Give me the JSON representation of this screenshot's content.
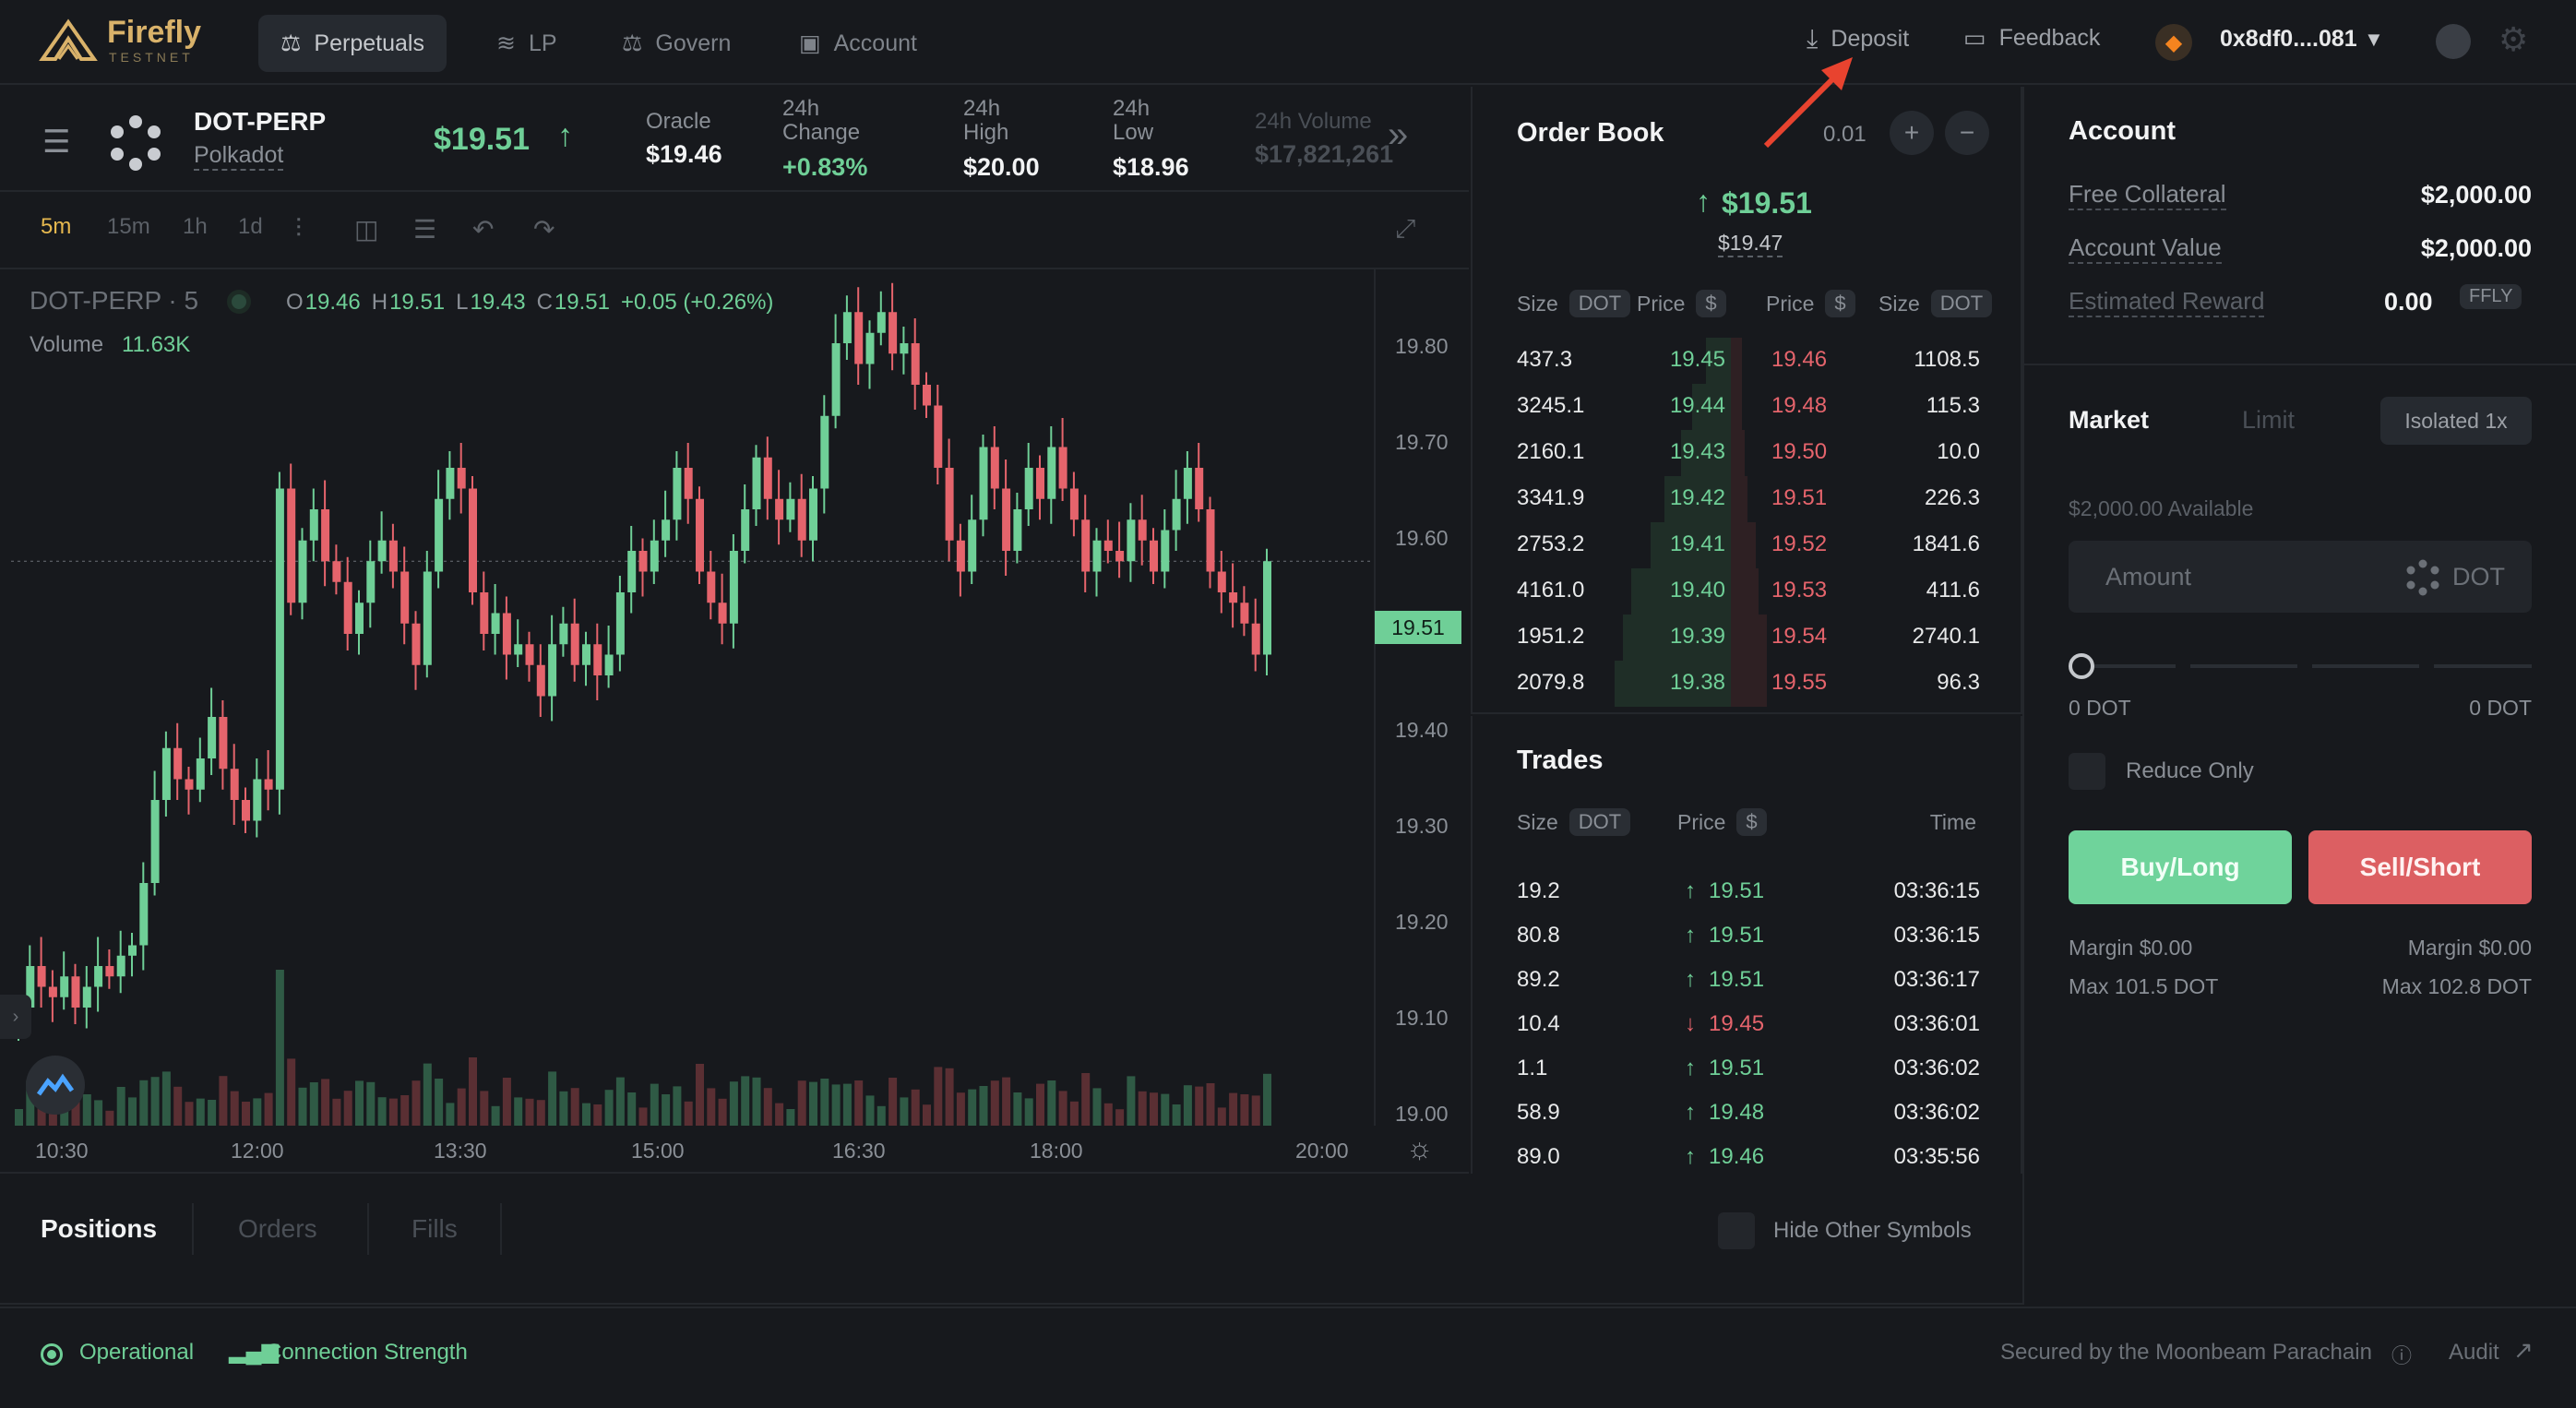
{
  "nav": {
    "brand": "Firefly",
    "brand_sub": "TESTNET",
    "tabs": [
      "Perpetuals",
      "LP",
      "Govern",
      "Account"
    ],
    "deposit": "Deposit",
    "feedback": "Feedback",
    "wallet": "0x8df0....081"
  },
  "market": {
    "symbol": "DOT-PERP",
    "name": "Polkadot",
    "price": "$19.51",
    "oracle_label": "Oracle",
    "oracle_value": "$19.46",
    "change_label_1": "24h",
    "change_label_2": "Change",
    "change_value": "+0.83%",
    "high_label_1": "24h",
    "high_label_2": "High",
    "high_value": "$20.00",
    "low_label_1": "24h",
    "low_label_2": "Low",
    "low_value": "$18.96",
    "volume_label": "24h Volume",
    "volume_value": "$17,821,261"
  },
  "chart": {
    "timeframes": [
      "5m",
      "15m",
      "1h",
      "1d"
    ],
    "legend_symbol": "DOT-PERP · 5",
    "ohlc": {
      "o": "19.46",
      "h": "19.51",
      "l": "19.43",
      "c": "19.51",
      "chg": "+0.05 (+0.26%)"
    },
    "o_label": "O",
    "h_label": "H",
    "l_label": "L",
    "c_label": "C",
    "volume_label": "Volume",
    "volume_value": "11.63K",
    "last_price_tag": "19.51",
    "y_ticks": [
      "19.80",
      "19.70",
      "19.60",
      "19.40",
      "19.30",
      "19.20",
      "19.10",
      "19.00"
    ],
    "x_ticks": [
      "10:30",
      "12:00",
      "13:30",
      "15:00",
      "16:30",
      "18:00",
      "20:00"
    ]
  },
  "chart_data": {
    "type": "candlestick",
    "title": "DOT-PERP · 5",
    "y_range": [
      19.0,
      19.8
    ],
    "x_range": [
      "10:30",
      "20:00"
    ],
    "last": 19.51,
    "closes": [
      19.08,
      19.12,
      19.1,
      19.09,
      19.11,
      19.08,
      19.1,
      19.12,
      19.11,
      19.13,
      19.14,
      19.2,
      19.28,
      19.33,
      19.3,
      19.29,
      19.32,
      19.36,
      19.31,
      19.28,
      19.26,
      19.3,
      19.29,
      19.58,
      19.47,
      19.53,
      19.56,
      19.51,
      19.49,
      19.44,
      19.47,
      19.51,
      19.53,
      19.5,
      19.45,
      19.41,
      19.5,
      19.57,
      19.6,
      19.58,
      19.48,
      19.44,
      19.46,
      19.42,
      19.43,
      19.41,
      19.38,
      19.43,
      19.45,
      19.41,
      19.43,
      19.4,
      19.42,
      19.48,
      19.52,
      19.5,
      19.53,
      19.55,
      19.6,
      19.57,
      19.5,
      19.47,
      19.45,
      19.52,
      19.56,
      19.61,
      19.57,
      19.55,
      19.57,
      19.53,
      19.58,
      19.65,
      19.72,
      19.75,
      19.7,
      19.73,
      19.75,
      19.71,
      19.72,
      19.68,
      19.66,
      19.6,
      19.53,
      19.5,
      19.55,
      19.62,
      19.58,
      19.52,
      19.56,
      19.6,
      19.57,
      19.62,
      19.58,
      19.55,
      19.5,
      19.53,
      19.52,
      19.51,
      19.55,
      19.53,
      19.5,
      19.54,
      19.57,
      19.6,
      19.56,
      19.5,
      19.48,
      19.47,
      19.45,
      19.42,
      19.51
    ],
    "volume_scale": "11.63K"
  },
  "orderbook": {
    "title": "Order Book",
    "tick": "0.01",
    "mid_price": "$19.51",
    "mark_price": "$19.47",
    "col_size": "Size",
    "col_price": "Price",
    "unit_dot": "DOT",
    "unit_usd": "$",
    "bids": [
      {
        "size": "437.3",
        "price": "19.45",
        "depth": 0.09
      },
      {
        "size": "3245.1",
        "price": "19.44",
        "depth": 0.14
      },
      {
        "size": "2160.1",
        "price": "19.43",
        "depth": 0.18
      },
      {
        "size": "3341.9",
        "price": "19.42",
        "depth": 0.24
      },
      {
        "size": "2753.2",
        "price": "19.41",
        "depth": 0.29
      },
      {
        "size": "4161.0",
        "price": "19.40",
        "depth": 0.36
      },
      {
        "size": "1951.2",
        "price": "19.39",
        "depth": 0.39
      },
      {
        "size": "2079.8",
        "price": "19.38",
        "depth": 0.42
      }
    ],
    "asks": [
      {
        "price": "19.46",
        "size": "1108.5",
        "depth": 0.04
      },
      {
        "price": "19.48",
        "size": "115.3",
        "depth": 0.04
      },
      {
        "price": "19.50",
        "size": "10.0",
        "depth": 0.05
      },
      {
        "price": "19.51",
        "size": "226.3",
        "depth": 0.06
      },
      {
        "price": "19.52",
        "size": "1841.6",
        "depth": 0.09
      },
      {
        "price": "19.53",
        "size": "411.6",
        "depth": 0.1
      },
      {
        "price": "19.54",
        "size": "2740.1",
        "depth": 0.13
      },
      {
        "price": "19.55",
        "size": "96.3",
        "depth": 0.13
      }
    ]
  },
  "trades": {
    "title": "Trades",
    "col_size": "Size",
    "col_price": "Price",
    "col_time": "Time",
    "unit_dot": "DOT",
    "unit_usd": "$",
    "rows": [
      {
        "size": "19.2",
        "price": "19.51",
        "side": "buy",
        "time": "03:36:15"
      },
      {
        "size": "80.8",
        "price": "19.51",
        "side": "buy",
        "time": "03:36:15"
      },
      {
        "size": "89.2",
        "price": "19.51",
        "side": "buy",
        "time": "03:36:17"
      },
      {
        "size": "10.4",
        "price": "19.45",
        "side": "sell",
        "time": "03:36:01"
      },
      {
        "size": "1.1",
        "price": "19.51",
        "side": "buy",
        "time": "03:36:02"
      },
      {
        "size": "58.9",
        "price": "19.48",
        "side": "buy",
        "time": "03:36:02"
      },
      {
        "size": "89.0",
        "price": "19.46",
        "side": "buy",
        "time": "03:35:56"
      }
    ]
  },
  "account": {
    "title": "Account",
    "free_collateral_label": "Free Collateral",
    "free_collateral": "$2,000.00",
    "account_value_label": "Account Value",
    "account_value": "$2,000.00",
    "reward_label": "Estimated Reward",
    "reward_value": "0.00",
    "reward_unit": "FFLY"
  },
  "order_form": {
    "tab_market": "Market",
    "tab_limit": "Limit",
    "margin_mode": "Isolated 1x",
    "available": "$2,000.00 Available",
    "amount_placeholder": "Amount",
    "amount_unit": "DOT",
    "slider_min": "0 DOT",
    "slider_max": "0 DOT",
    "slider_fraction": 0,
    "reduce_only": "Reduce Only",
    "buy": "Buy/Long",
    "sell": "Sell/Short",
    "buy_margin": "Margin $0.00",
    "sell_margin": "Margin $0.00",
    "buy_max": "Max 101.5 DOT",
    "sell_max": "Max 102.8 DOT"
  },
  "positions": {
    "tabs": [
      "Positions",
      "Orders",
      "Fills"
    ],
    "hide_other": "Hide Other Symbols"
  },
  "footer": {
    "status": "Operational",
    "connection": "Connection Strength",
    "secured": "Secured by the Moonbeam Parachain",
    "audit": "Audit"
  },
  "colors": {
    "bg": "#17191d",
    "green": "#6fcf97",
    "red": "#e5646c",
    "buy_btn": "#6fd39b",
    "sell_btn": "#dc5f62",
    "brand": "#d9b26a"
  }
}
